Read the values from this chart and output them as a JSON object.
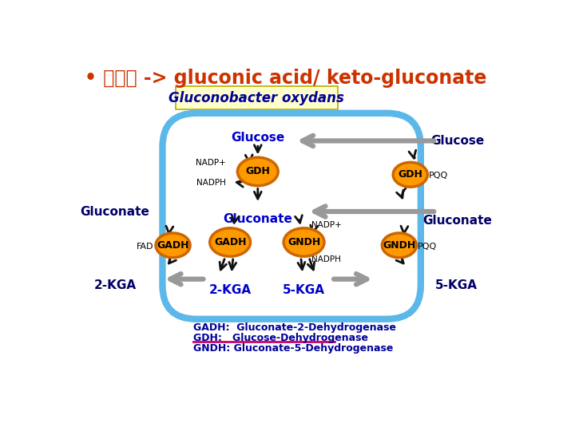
{
  "title": "• 포도당 -> gluconic acid/ keto-gluconate",
  "title_color": "#CC3300",
  "title_fontsize": 17,
  "bg_color": "#FFFFFF",
  "cell_color": "#5BB8E8",
  "cell_lw": 6,
  "enzyme_color": "#FF9900",
  "enzyme_outline": "#CC6600",
  "enzyme_label_color": "#000000",
  "met_color_in": "#0000CC",
  "met_color_out": "#000066",
  "gluconobacter_label": "Gluconobacter oxydans",
  "gluconobacter_box_color": "#FFFFCC",
  "gluconobacter_text_color": "#000099",
  "legend_lines": [
    "GADH:  Gluconate-2-Dehydrogenase",
    "GDH:   Glucose-Dehydrogenase",
    "GNDH: Gluconate-5-Dehydrogenase"
  ],
  "legend_colors": [
    "#000099",
    "#000099",
    "#000099"
  ],
  "underline_color": "#CC0066",
  "small_text_color": "#000000",
  "nadp_fontsize": 7.5,
  "met_fontsize": 11,
  "enzyme_fontsize": 9,
  "legend_fontsize": 9
}
